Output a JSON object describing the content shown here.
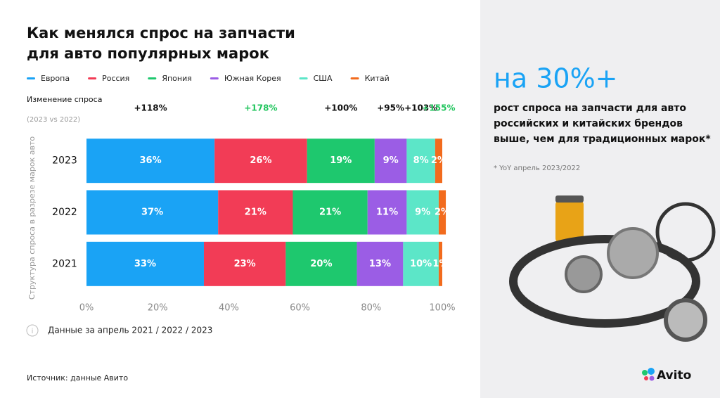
{
  "chart_data": {
    "type": "stacked-bar-horizontal",
    "title_lines": [
      "Как менялся спрос на запчасти",
      "для авто популярных марок"
    ],
    "y_label": "Структура спроса в разрезе марок авто",
    "change_title": "Изменение спроса",
    "change_subtitle": "(2023 vs 2022)",
    "categories": [
      "2023",
      "2022",
      "2021"
    ],
    "series": [
      {
        "name": "Европа",
        "color": "#1aa3f5",
        "values": [
          36,
          37,
          33
        ],
        "value_labels": [
          "36%",
          "37%",
          "33%"
        ],
        "change_label": "+118%",
        "change_color": "#111111"
      },
      {
        "name": "Россия",
        "color": "#f23c56",
        "values": [
          26,
          21,
          23
        ],
        "value_labels": [
          "26%",
          "21%",
          "23%"
        ],
        "change_label": "+178%",
        "change_color": "#22c55e"
      },
      {
        "name": "Япония",
        "color": "#1ec86e",
        "values": [
          19,
          21,
          20
        ],
        "value_labels": [
          "19%",
          "21%",
          "20%"
        ],
        "change_label": "+100%",
        "change_color": "#111111"
      },
      {
        "name": "Южная Корея",
        "color": "#9b5de5",
        "values": [
          9,
          11,
          13
        ],
        "value_labels": [
          "9%",
          "11%",
          "13%"
        ],
        "change_label": "+95%",
        "change_color": "#111111"
      },
      {
        "name": "США",
        "color": "#5ce6c8",
        "values": [
          8,
          9,
          10
        ],
        "value_labels": [
          "8%",
          "9%",
          "10%"
        ],
        "change_label": "+103%",
        "change_color": "#111111"
      },
      {
        "name": "Китай",
        "color": "#f26b1d",
        "values": [
          2,
          2,
          1
        ],
        "value_labels": [
          "2%",
          "2%",
          "1%"
        ],
        "change_label": "+155%",
        "change_color": "#22c55e"
      }
    ],
    "xlim": [
      0,
      100
    ],
    "xticks": [
      {
        "value": 0,
        "label": "0%"
      },
      {
        "value": 20,
        "label": "20%"
      },
      {
        "value": 40,
        "label": "40%"
      },
      {
        "value": 60,
        "label": "60%"
      },
      {
        "value": 80,
        "label": "80%"
      },
      {
        "value": 100,
        "label": "100%"
      }
    ],
    "grid": false,
    "note": "Данные за апрель 2021 / 2022 / 2023"
  },
  "source": "Источник: данные Авито",
  "side_panel": {
    "headline": "на 30%+",
    "text_lines": [
      "рост спроса на запчасти для авто",
      "российских и китайских брендов",
      "выше, чем для традиционных марок*"
    ],
    "footnote": "* YoY апрель 2023/2022",
    "logo": "Avito"
  }
}
